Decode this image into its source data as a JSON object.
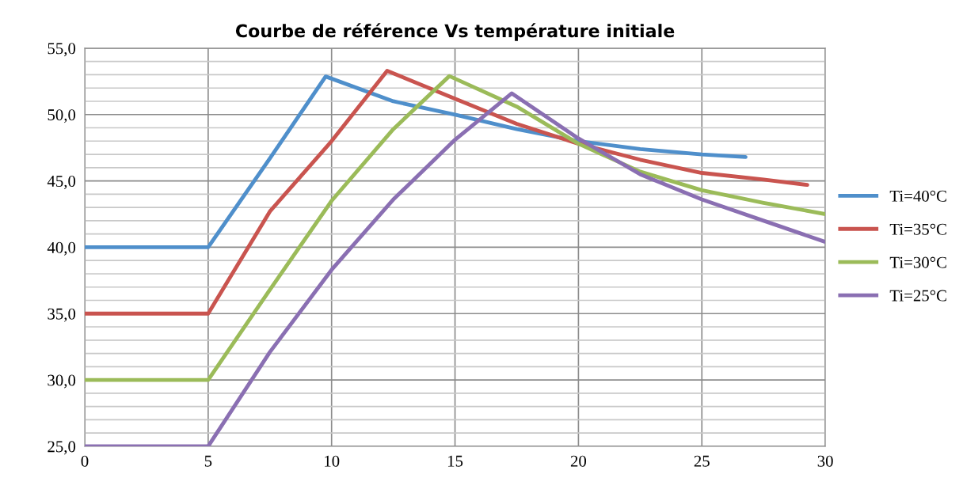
{
  "chart_data": {
    "type": "line",
    "title": "Courbe de référence Vs température initiale",
    "xlim": [
      0,
      30
    ],
    "xticks": [
      0,
      5,
      10,
      15,
      20,
      25,
      30
    ],
    "ylim": [
      25,
      55
    ],
    "yticks": [
      {
        "value": 25,
        "label": "25,0"
      },
      {
        "value": 26,
        "label": null
      },
      {
        "value": 27,
        "label": null
      },
      {
        "value": 28,
        "label": null
      },
      {
        "value": 29,
        "label": null
      },
      {
        "value": 30,
        "label": "30,0"
      },
      {
        "value": 31,
        "label": null
      },
      {
        "value": 32,
        "label": null
      },
      {
        "value": 33,
        "label": null
      },
      {
        "value": 34,
        "label": null
      },
      {
        "value": 35,
        "label": "35,0"
      },
      {
        "value": 36,
        "label": null
      },
      {
        "value": 37,
        "label": null
      },
      {
        "value": 38,
        "label": null
      },
      {
        "value": 39,
        "label": null
      },
      {
        "value": 40,
        "label": "40,0"
      },
      {
        "value": 41,
        "label": null
      },
      {
        "value": 42,
        "label": null
      },
      {
        "value": 43,
        "label": null
      },
      {
        "value": 44,
        "label": null
      },
      {
        "value": 45,
        "label": "45,0"
      },
      {
        "value": 46,
        "label": null
      },
      {
        "value": 47,
        "label": null
      },
      {
        "value": 48,
        "label": null
      },
      {
        "value": 49,
        "label": null
      },
      {
        "value": 50,
        "label": "50,0"
      },
      {
        "value": 51,
        "label": null
      },
      {
        "value": 52,
        "label": null
      },
      {
        "value": 53,
        "label": null
      },
      {
        "value": 54,
        "label": null
      },
      {
        "value": 55,
        "label": "55,0"
      }
    ],
    "grid": true,
    "legend": "right",
    "marker": "none",
    "line_style": "solid",
    "series": [
      {
        "name": "Ti=40°C",
        "color": "#4f8fcb",
        "x": [
          0,
          5,
          7.5,
          9.76,
          12.5,
          15,
          17.5,
          20,
          22.5,
          25,
          26.77
        ],
        "values": [
          40,
          40,
          46.7,
          52.87,
          51.0,
          50.0,
          48.9,
          48.0,
          47.4,
          47.0,
          46.8
        ]
      },
      {
        "name": "Ti=35°C",
        "color": "#c9544f",
        "x": [
          0,
          5,
          7.5,
          10,
          12.25,
          15,
          17.5,
          20,
          22.5,
          25,
          27.5,
          29.27
        ],
        "values": [
          35,
          35,
          42.7,
          48.0,
          53.3,
          51.2,
          49.3,
          47.8,
          46.6,
          45.6,
          45.1,
          44.7
        ]
      },
      {
        "name": "Ti=30°C",
        "color": "#9bbb59",
        "x": [
          0,
          5,
          7.5,
          10,
          12.5,
          14.77,
          17.5,
          20,
          22.5,
          25,
          27.5,
          30
        ],
        "values": [
          30,
          30,
          36.8,
          43.5,
          48.9,
          52.9,
          50.6,
          47.8,
          45.7,
          44.3,
          43.35,
          42.5
        ]
      },
      {
        "name": "Ti=25°C",
        "color": "#8a6fb2",
        "x": [
          0,
          5,
          7.5,
          10,
          12.5,
          15,
          17.3,
          20,
          22.5,
          25,
          27.5,
          30
        ],
        "values": [
          25,
          25,
          32.1,
          38.3,
          43.6,
          48.1,
          51.6,
          48.2,
          45.5,
          43.6,
          42.0,
          40.4
        ]
      }
    ]
  }
}
